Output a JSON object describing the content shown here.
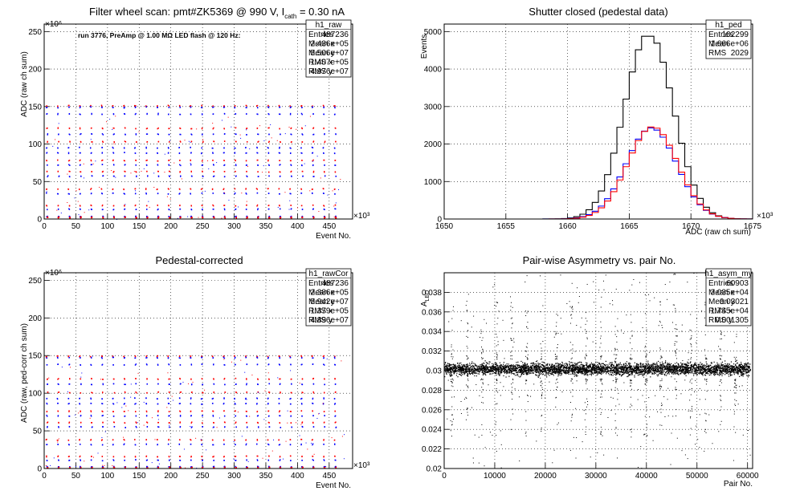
{
  "chart_data": [
    {
      "type": "scatter",
      "title_prefix": "Filter wheel scan: pmt#ZK5369 @   990 V, I",
      "title_sub": "cath",
      "title_suffix": " = 0.30 nA",
      "xlabel": "Event No.",
      "ylabel": "ADC (raw ch sum)",
      "x_exponent": "×10³",
      "y_exponent": "×10⁶",
      "xlim": [
        0,
        487
      ],
      "ylim": [
        0,
        260
      ],
      "xticks": [
        "0",
        "50",
        "100",
        "150",
        "200",
        "250",
        "300",
        "350",
        "400",
        "450"
      ],
      "yticks": [
        "0",
        "50",
        "100",
        "150",
        "200",
        "250"
      ],
      "grid": true,
      "annotation": "run 3776, PreAmp @ 1.00 MΩ LED flash @  120 Hz:",
      "period_x": 17.5,
      "levels": [
        {
          "y": 151,
          "color": "#ff0000"
        },
        {
          "y": 149,
          "color": "#0000ff"
        },
        {
          "y": 140,
          "color": "#0000ff"
        },
        {
          "y": 121,
          "color": "#ff0000"
        },
        {
          "y": 113,
          "color": "#0000ff"
        },
        {
          "y": 103,
          "color": "#ff0000"
        },
        {
          "y": 95,
          "color": "#0000ff"
        },
        {
          "y": 88,
          "color": "#0000ff"
        },
        {
          "y": 78,
          "color": "#ff0000"
        },
        {
          "y": 72,
          "color": "#0000ff"
        },
        {
          "y": 63,
          "color": "#ff0000"
        },
        {
          "y": 57,
          "color": "#0000ff"
        },
        {
          "y": 40,
          "color": "#ff0000"
        },
        {
          "y": 34,
          "color": "#0000ff"
        },
        {
          "y": 18,
          "color": "#ff0000"
        },
        {
          "y": 13,
          "color": "#0000ff"
        },
        {
          "y": 3,
          "color": "#0000ff"
        },
        {
          "y": 2,
          "color": "#ff0000"
        }
      ],
      "stats": {
        "name": "h1_raw",
        "rows": [
          [
            "Entries",
            "487236"
          ],
          [
            "Mean x",
            "2.436e+05"
          ],
          [
            "Mean y",
            "5.506e+07"
          ],
          [
            "RMS x",
            "1.407e+05"
          ],
          [
            "RMS y",
            "4.976e+07"
          ]
        ]
      }
    },
    {
      "type": "histogram",
      "title": "Shutter closed (pedestal data)",
      "xlabel": "ADC (raw ch sum)",
      "ylabel": "Events",
      "x_exponent": "×10³",
      "xlim": [
        1650,
        1675
      ],
      "ylim": [
        0,
        5200
      ],
      "xticks": [
        "1650",
        "1655",
        "1660",
        "1665",
        "1670",
        "1675"
      ],
      "yticks": [
        "0",
        "1000",
        "2000",
        "3000",
        "4000",
        "5000"
      ],
      "grid": true,
      "series": [
        {
          "color": "#000000",
          "mean": 1666.6,
          "sigma": 1.98,
          "peak": 4950
        },
        {
          "color": "#0000ff",
          "mean": 1666.8,
          "sigma": 2.05,
          "peak": 2430
        },
        {
          "color": "#ff0000",
          "mean": 1666.9,
          "sigma": 2.02,
          "peak": 2460
        }
      ],
      "stats": {
        "name": "h1_ped",
        "rows": [
          [
            "Entries",
            "102299"
          ],
          [
            "Mean",
            "1.666e+06"
          ],
          [
            "RMS",
            "2029"
          ]
        ]
      }
    },
    {
      "type": "scatter",
      "title": "Pedestal-corrected",
      "xlabel": "Event No.",
      "ylabel": "ADC (raw, ped-corr ch sum)",
      "x_exponent": "×10³",
      "y_exponent": "×10⁶",
      "xlim": [
        0,
        487
      ],
      "ylim": [
        0,
        260
      ],
      "xticks": [
        "0",
        "50",
        "100",
        "150",
        "200",
        "250",
        "300",
        "350",
        "400",
        "450"
      ],
      "yticks": [
        "0",
        "50",
        "100",
        "150",
        "200",
        "250"
      ],
      "grid": true,
      "period_x": 17.5,
      "levels": [
        {
          "y": 149,
          "color": "#ff0000"
        },
        {
          "y": 147,
          "color": "#0000ff"
        },
        {
          "y": 138,
          "color": "#0000ff"
        },
        {
          "y": 119,
          "color": "#ff0000"
        },
        {
          "y": 112,
          "color": "#0000ff"
        },
        {
          "y": 101,
          "color": "#ff0000"
        },
        {
          "y": 93,
          "color": "#0000ff"
        },
        {
          "y": 86,
          "color": "#0000ff"
        },
        {
          "y": 76,
          "color": "#ff0000"
        },
        {
          "y": 70,
          "color": "#0000ff"
        },
        {
          "y": 61,
          "color": "#ff0000"
        },
        {
          "y": 55,
          "color": "#0000ff"
        },
        {
          "y": 38,
          "color": "#ff0000"
        },
        {
          "y": 32,
          "color": "#0000ff"
        },
        {
          "y": 16,
          "color": "#ff0000"
        },
        {
          "y": 11,
          "color": "#0000ff"
        },
        {
          "y": 2,
          "color": "#0000ff"
        },
        {
          "y": 1,
          "color": "#ff0000"
        }
      ],
      "stats": {
        "name": "h1_rawCor",
        "rows": [
          [
            "Entries",
            "487236"
          ],
          [
            "Mean x",
            "2.386e+05"
          ],
          [
            "Mean y",
            "5.942e+07"
          ],
          [
            "RMS x",
            "1.379e+05"
          ],
          [
            "RMS y",
            "4.896e+07"
          ]
        ]
      }
    },
    {
      "type": "scatter",
      "title": "Pair-wise Asymmetry vs. pair No.",
      "xlabel": "Pair No.",
      "ylabel": "A",
      "ylabel_sub": "LED",
      "xlim": [
        0,
        61000
      ],
      "ylim": [
        0.02,
        0.04
      ],
      "xticks": [
        "0",
        "10000",
        "20000",
        "30000",
        "40000",
        "50000",
        "60000"
      ],
      "yticks": [
        "0.02",
        "0.022",
        "0.024",
        "0.026",
        "0.028",
        "0.03",
        "0.032",
        "0.034",
        "0.036",
        "0.038"
      ],
      "grid": true,
      "band_center": 0.0302,
      "band_halfwidth": 0.0008,
      "spike_period": 2950,
      "stats": {
        "name": "h1_asym_my",
        "rows": [
          [
            "Entries",
            "60903"
          ],
          [
            "Mean x",
            "3.035e+04"
          ],
          [
            "Mean y",
            "0.03021"
          ],
          [
            "RMS x",
            "1.745e+04"
          ],
          [
            "RMS y",
            "0.001305"
          ]
        ]
      }
    }
  ]
}
